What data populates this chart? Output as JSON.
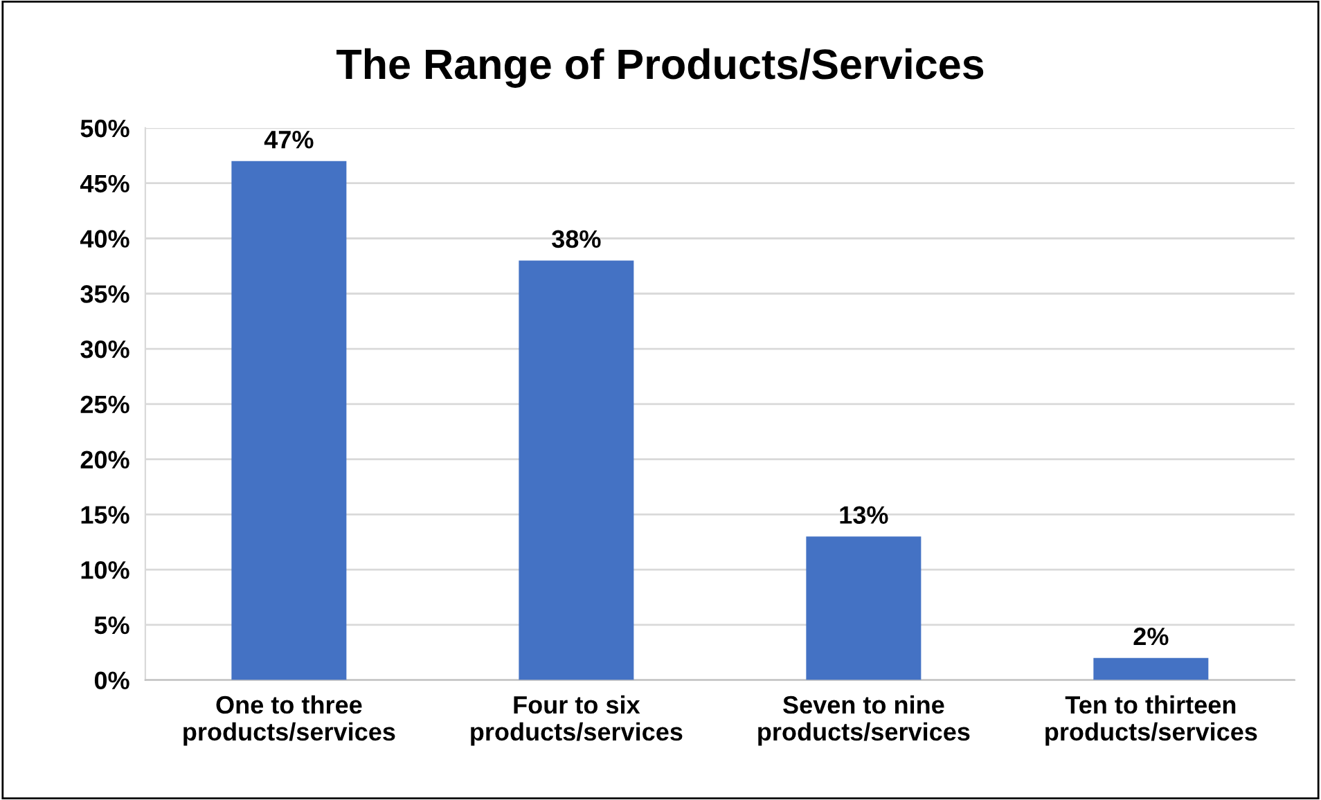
{
  "chart_data": {
    "type": "bar",
    "title": "The Range of Products/Services",
    "categories": [
      "One to three\nproducts/services",
      "Four to six\nproducts/services",
      "Seven to nine\nproducts/services",
      "Ten to thirteen\nproducts/services"
    ],
    "values": [
      47,
      38,
      13,
      2
    ],
    "value_labels": [
      "47%",
      "38%",
      "13%",
      "2%"
    ],
    "color": "#4472c4",
    "ylim": [
      0,
      50
    ],
    "yticks": [
      {
        "value": 0,
        "label": "0%"
      },
      {
        "value": 5,
        "label": "5%"
      },
      {
        "value": 10,
        "label": "10%"
      },
      {
        "value": 15,
        "label": "15%"
      },
      {
        "value": 20,
        "label": "20%"
      },
      {
        "value": 25,
        "label": "25%"
      },
      {
        "value": 30,
        "label": "30%"
      },
      {
        "value": 35,
        "label": "35%"
      },
      {
        "value": 40,
        "label": "40%"
      },
      {
        "value": 45,
        "label": "45%"
      },
      {
        "value": 50,
        "label": "50%"
      }
    ],
    "grid": "y"
  }
}
